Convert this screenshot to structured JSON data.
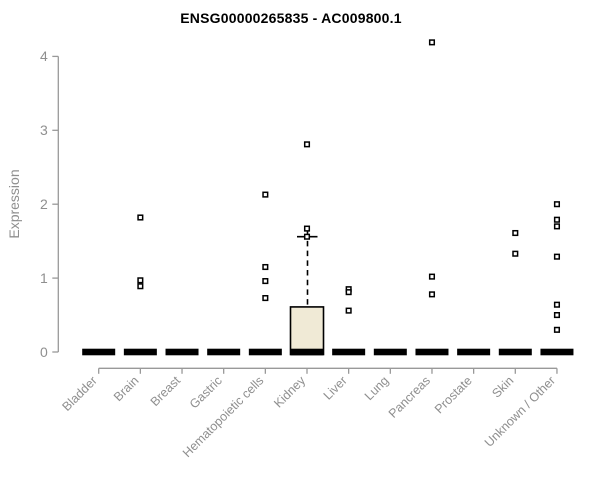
{
  "header": {
    "title": "ENSG00000265835 - AC009800.1"
  },
  "chart_data": {
    "type": "box",
    "title": "ENSG00000265835 - AC009800.1",
    "xlabel": "",
    "ylabel": "Expression",
    "ylim": [
      0,
      4.2
    ],
    "yticks": [
      0,
      1,
      2,
      3,
      4
    ],
    "grid": false,
    "legend": "none",
    "categories": [
      "Bladder",
      "Brain",
      "Breast",
      "Gastric",
      "Hematopoietic cells",
      "Kidney",
      "Liver",
      "Lung",
      "Pancreas",
      "Prostate",
      "Skin",
      "Unknown / Other"
    ],
    "boxes": [
      {
        "category": "Bladder",
        "q1": 0,
        "median": 0,
        "q3": 0,
        "whisker_low": 0,
        "whisker_high": 0,
        "outliers": []
      },
      {
        "category": "Brain",
        "q1": 0,
        "median": 0,
        "q3": 0,
        "whisker_low": 0,
        "whisker_high": 0,
        "outliers": [
          1.82,
          0.97,
          0.89
        ]
      },
      {
        "category": "Breast",
        "q1": 0,
        "median": 0,
        "q3": 0,
        "whisker_low": 0,
        "whisker_high": 0,
        "outliers": []
      },
      {
        "category": "Gastric",
        "q1": 0,
        "median": 0,
        "q3": 0,
        "whisker_low": 0,
        "whisker_high": 0,
        "outliers": []
      },
      {
        "category": "Hematopoietic cells",
        "q1": 0,
        "median": 0,
        "q3": 0,
        "whisker_low": 0,
        "whisker_high": 0,
        "outliers": [
          2.13,
          1.15,
          0.96,
          0.73
        ]
      },
      {
        "category": "Kidney",
        "q1": 0,
        "median": 0,
        "q3": 0.61,
        "whisker_low": 0,
        "whisker_high": 1.56,
        "outliers": [
          2.81,
          1.67,
          1.56
        ]
      },
      {
        "category": "Liver",
        "q1": 0,
        "median": 0,
        "q3": 0,
        "whisker_low": 0,
        "whisker_high": 0,
        "outliers": [
          0.85,
          0.81,
          0.56
        ]
      },
      {
        "category": "Lung",
        "q1": 0,
        "median": 0,
        "q3": 0,
        "whisker_low": 0,
        "whisker_high": 0,
        "outliers": []
      },
      {
        "category": "Pancreas",
        "q1": 0,
        "median": 0,
        "q3": 0,
        "whisker_low": 0,
        "whisker_high": 0,
        "outliers": [
          4.19,
          1.02,
          0.78
        ]
      },
      {
        "category": "Prostate",
        "q1": 0,
        "median": 0,
        "q3": 0,
        "whisker_low": 0,
        "whisker_high": 0,
        "outliers": []
      },
      {
        "category": "Skin",
        "q1": 0,
        "median": 0,
        "q3": 0,
        "whisker_low": 0,
        "whisker_high": 0,
        "outliers": [
          1.61,
          1.33
        ]
      },
      {
        "category": "Unknown / Other",
        "q1": 0,
        "median": 0,
        "q3": 0,
        "whisker_low": 0,
        "whisker_high": 0,
        "outliers": [
          2.0,
          1.79,
          1.7,
          1.29,
          0.64,
          0.5,
          0.3
        ]
      }
    ],
    "colors": {
      "box_fill": "#f0ead6",
      "box_stroke": "#000000",
      "median_bar": "#000000",
      "marker_fill": "#ffffff",
      "marker_stroke": "#000000",
      "axis": "#999999",
      "tick_label": "#8f8f8f",
      "title_text": "#000000"
    }
  }
}
